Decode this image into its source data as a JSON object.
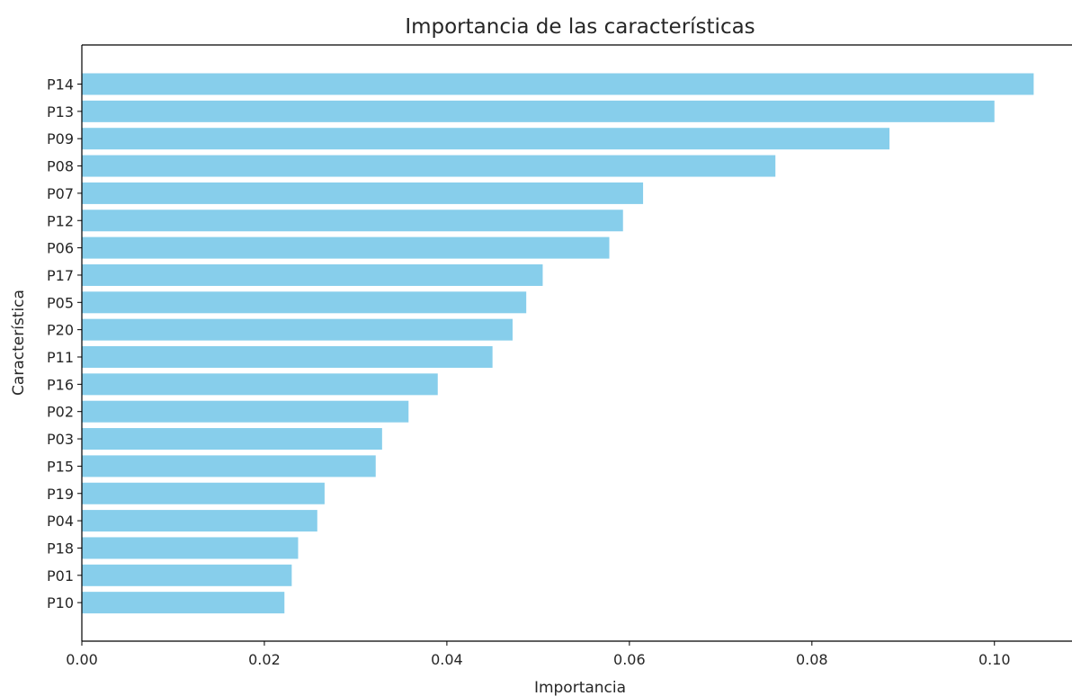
{
  "chart_data": {
    "type": "bar",
    "orientation": "horizontal",
    "title": "Importancia de las características",
    "xlabel": "Importancia",
    "ylabel": "Característica",
    "xlim": [
      0,
      0.1085
    ],
    "x_ticks": [
      "0.00",
      "0.02",
      "0.04",
      "0.06",
      "0.08",
      "0.10"
    ],
    "x_tick_values": [
      0,
      0.02,
      0.04,
      0.06,
      0.08,
      0.1
    ],
    "grid": false,
    "legend": "none",
    "bar_color": "#87ceeb",
    "categories": [
      "P14",
      "P13",
      "P09",
      "P08",
      "P07",
      "P12",
      "P06",
      "P17",
      "P05",
      "P20",
      "P11",
      "P16",
      "P02",
      "P03",
      "P15",
      "P19",
      "P04",
      "P18",
      "P01",
      "P10"
    ],
    "values": [
      0.1043,
      0.1,
      0.0885,
      0.076,
      0.0615,
      0.0593,
      0.0578,
      0.0505,
      0.0487,
      0.0472,
      0.045,
      0.039,
      0.0358,
      0.0329,
      0.0322,
      0.0266,
      0.0258,
      0.0237,
      0.023,
      0.0222
    ]
  }
}
